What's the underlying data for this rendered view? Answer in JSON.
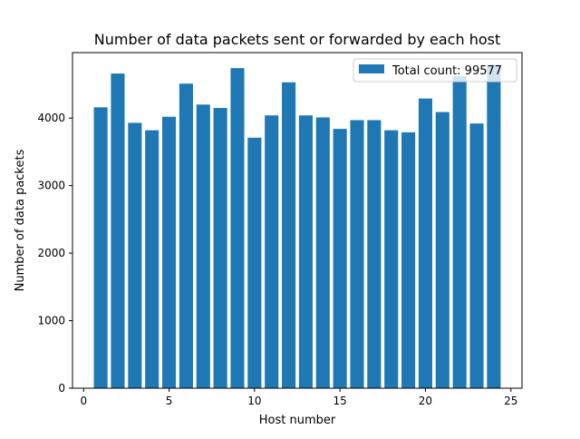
{
  "chart_data": {
    "type": "bar",
    "title": "Number of data packets sent or forwarded by each host",
    "xlabel": "Host number",
    "ylabel": "Number of data packets",
    "x": [
      1,
      2,
      3,
      4,
      5,
      6,
      7,
      8,
      9,
      10,
      11,
      12,
      13,
      14,
      15,
      16,
      17,
      18,
      19,
      20,
      21,
      22,
      23,
      24
    ],
    "values": [
      4160,
      4660,
      3930,
      3820,
      4020,
      4510,
      4200,
      4150,
      4740,
      3710,
      4040,
      4530,
      4040,
      4010,
      3840,
      3970,
      3970,
      3820,
      3790,
      4290,
      4090,
      4620,
      3920,
      4790
    ],
    "xlim": [
      -0.65,
      25.65
    ],
    "ylim": [
      0,
      4970
    ],
    "xticks": [
      0,
      5,
      10,
      15,
      20,
      25
    ],
    "yticks": [
      0,
      1000,
      2000,
      3000,
      4000
    ],
    "bar_color": "#1f77b4",
    "series": [
      {
        "name": "Total count: 99577"
      }
    ],
    "legend_position": "upper right",
    "grid": false
  }
}
